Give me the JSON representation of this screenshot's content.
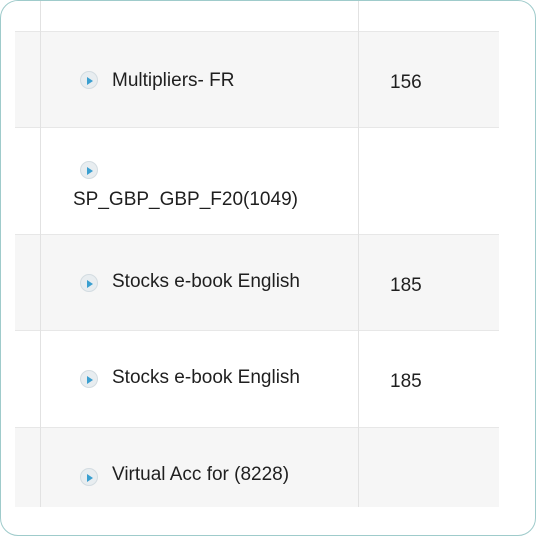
{
  "table": {
    "rows": [
      {
        "name": "",
        "value": ""
      },
      {
        "name": "Multipliers- FR",
        "value": "156"
      },
      {
        "name": "SP_GBP_GBP_F20(1049)",
        "value": ""
      },
      {
        "name": "Stocks e-book English",
        "value": "185"
      },
      {
        "name": "Stocks e-book English",
        "value": "185"
      },
      {
        "name": "Virtual Acc for (8228)",
        "value": ""
      }
    ],
    "row_icon": "play-circle-icon",
    "accent_color": "#3a9fd0",
    "shaded_row_color": "#f6f6f6",
    "border_color": "#9fcbcb"
  }
}
